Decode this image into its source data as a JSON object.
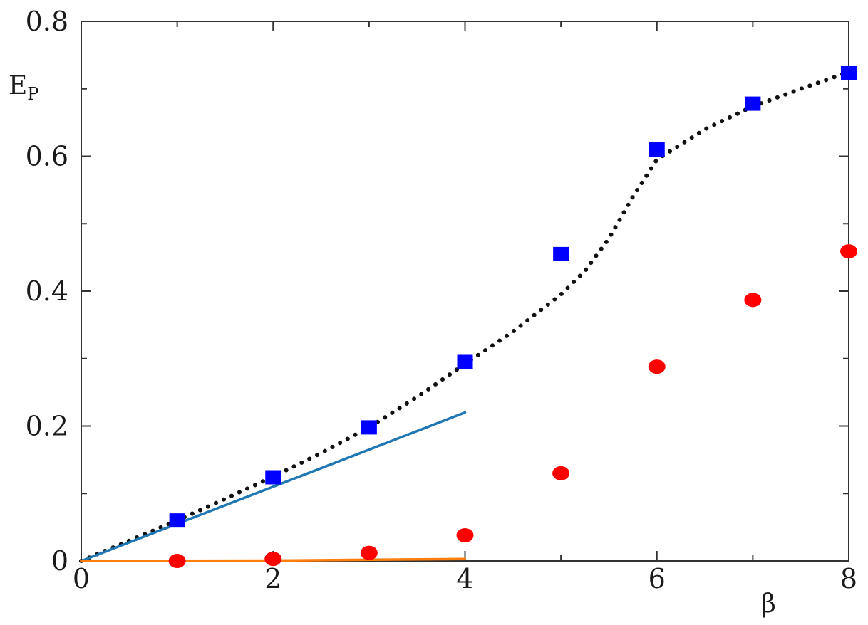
{
  "chart_data": {
    "type": "scatter",
    "xlabel": "β",
    "ylabel": "E",
    "ylabel_subscript": "P",
    "xlim": [
      0,
      8
    ],
    "ylim": [
      0,
      0.8
    ],
    "xticks": [
      0,
      2,
      4,
      6,
      8
    ],
    "xtick_labels": [
      "0",
      "2",
      "4",
      "6",
      "8"
    ],
    "yticks": [
      0,
      0.2,
      0.4,
      0.6,
      0.8
    ],
    "ytick_labels": [
      "0",
      "0.2",
      "0.4",
      "0.6",
      "0.8"
    ],
    "grid": false,
    "colors": {
      "squares": "#0000ff",
      "circles": "#ff0000",
      "dotted": "#111111",
      "blue_line": "#1f77b4",
      "orange_line": "#ff7f0e"
    },
    "series": [
      {
        "type": "scatter",
        "marker": "square",
        "color": "#0000ff",
        "x": [
          1,
          2,
          3,
          4,
          5,
          6,
          7,
          8
        ],
        "y": [
          0.06,
          0.124,
          0.198,
          0.295,
          0.455,
          0.61,
          0.678,
          0.723
        ]
      },
      {
        "type": "scatter",
        "marker": "circle",
        "color": "#ff0000",
        "x": [
          1,
          2,
          3,
          4,
          5,
          6,
          7,
          8
        ],
        "y": [
          0.0,
          0.003,
          0.012,
          0.038,
          0.13,
          0.288,
          0.387,
          0.459
        ]
      },
      {
        "type": "line",
        "style": "dotted",
        "color": "#111111",
        "x": [
          0,
          0.5,
          1,
          1.5,
          2,
          2.5,
          3,
          3.5,
          4,
          4.5,
          5,
          5.25,
          5.5,
          5.75,
          6,
          6.5,
          7,
          7.5,
          8
        ],
        "y": [
          0,
          0.03,
          0.06,
          0.092,
          0.125,
          0.16,
          0.198,
          0.243,
          0.292,
          0.34,
          0.395,
          0.43,
          0.478,
          0.54,
          0.595,
          0.64,
          0.674,
          0.7,
          0.725
        ]
      },
      {
        "type": "line",
        "style": "solid",
        "color": "#1f77b4",
        "x": [
          0,
          4
        ],
        "y": [
          0,
          0.22
        ]
      },
      {
        "type": "line",
        "style": "solid",
        "color": "#ff7f0e",
        "x": [
          0,
          2,
          4
        ],
        "y": [
          0,
          0.0005,
          0.003
        ]
      }
    ]
  }
}
